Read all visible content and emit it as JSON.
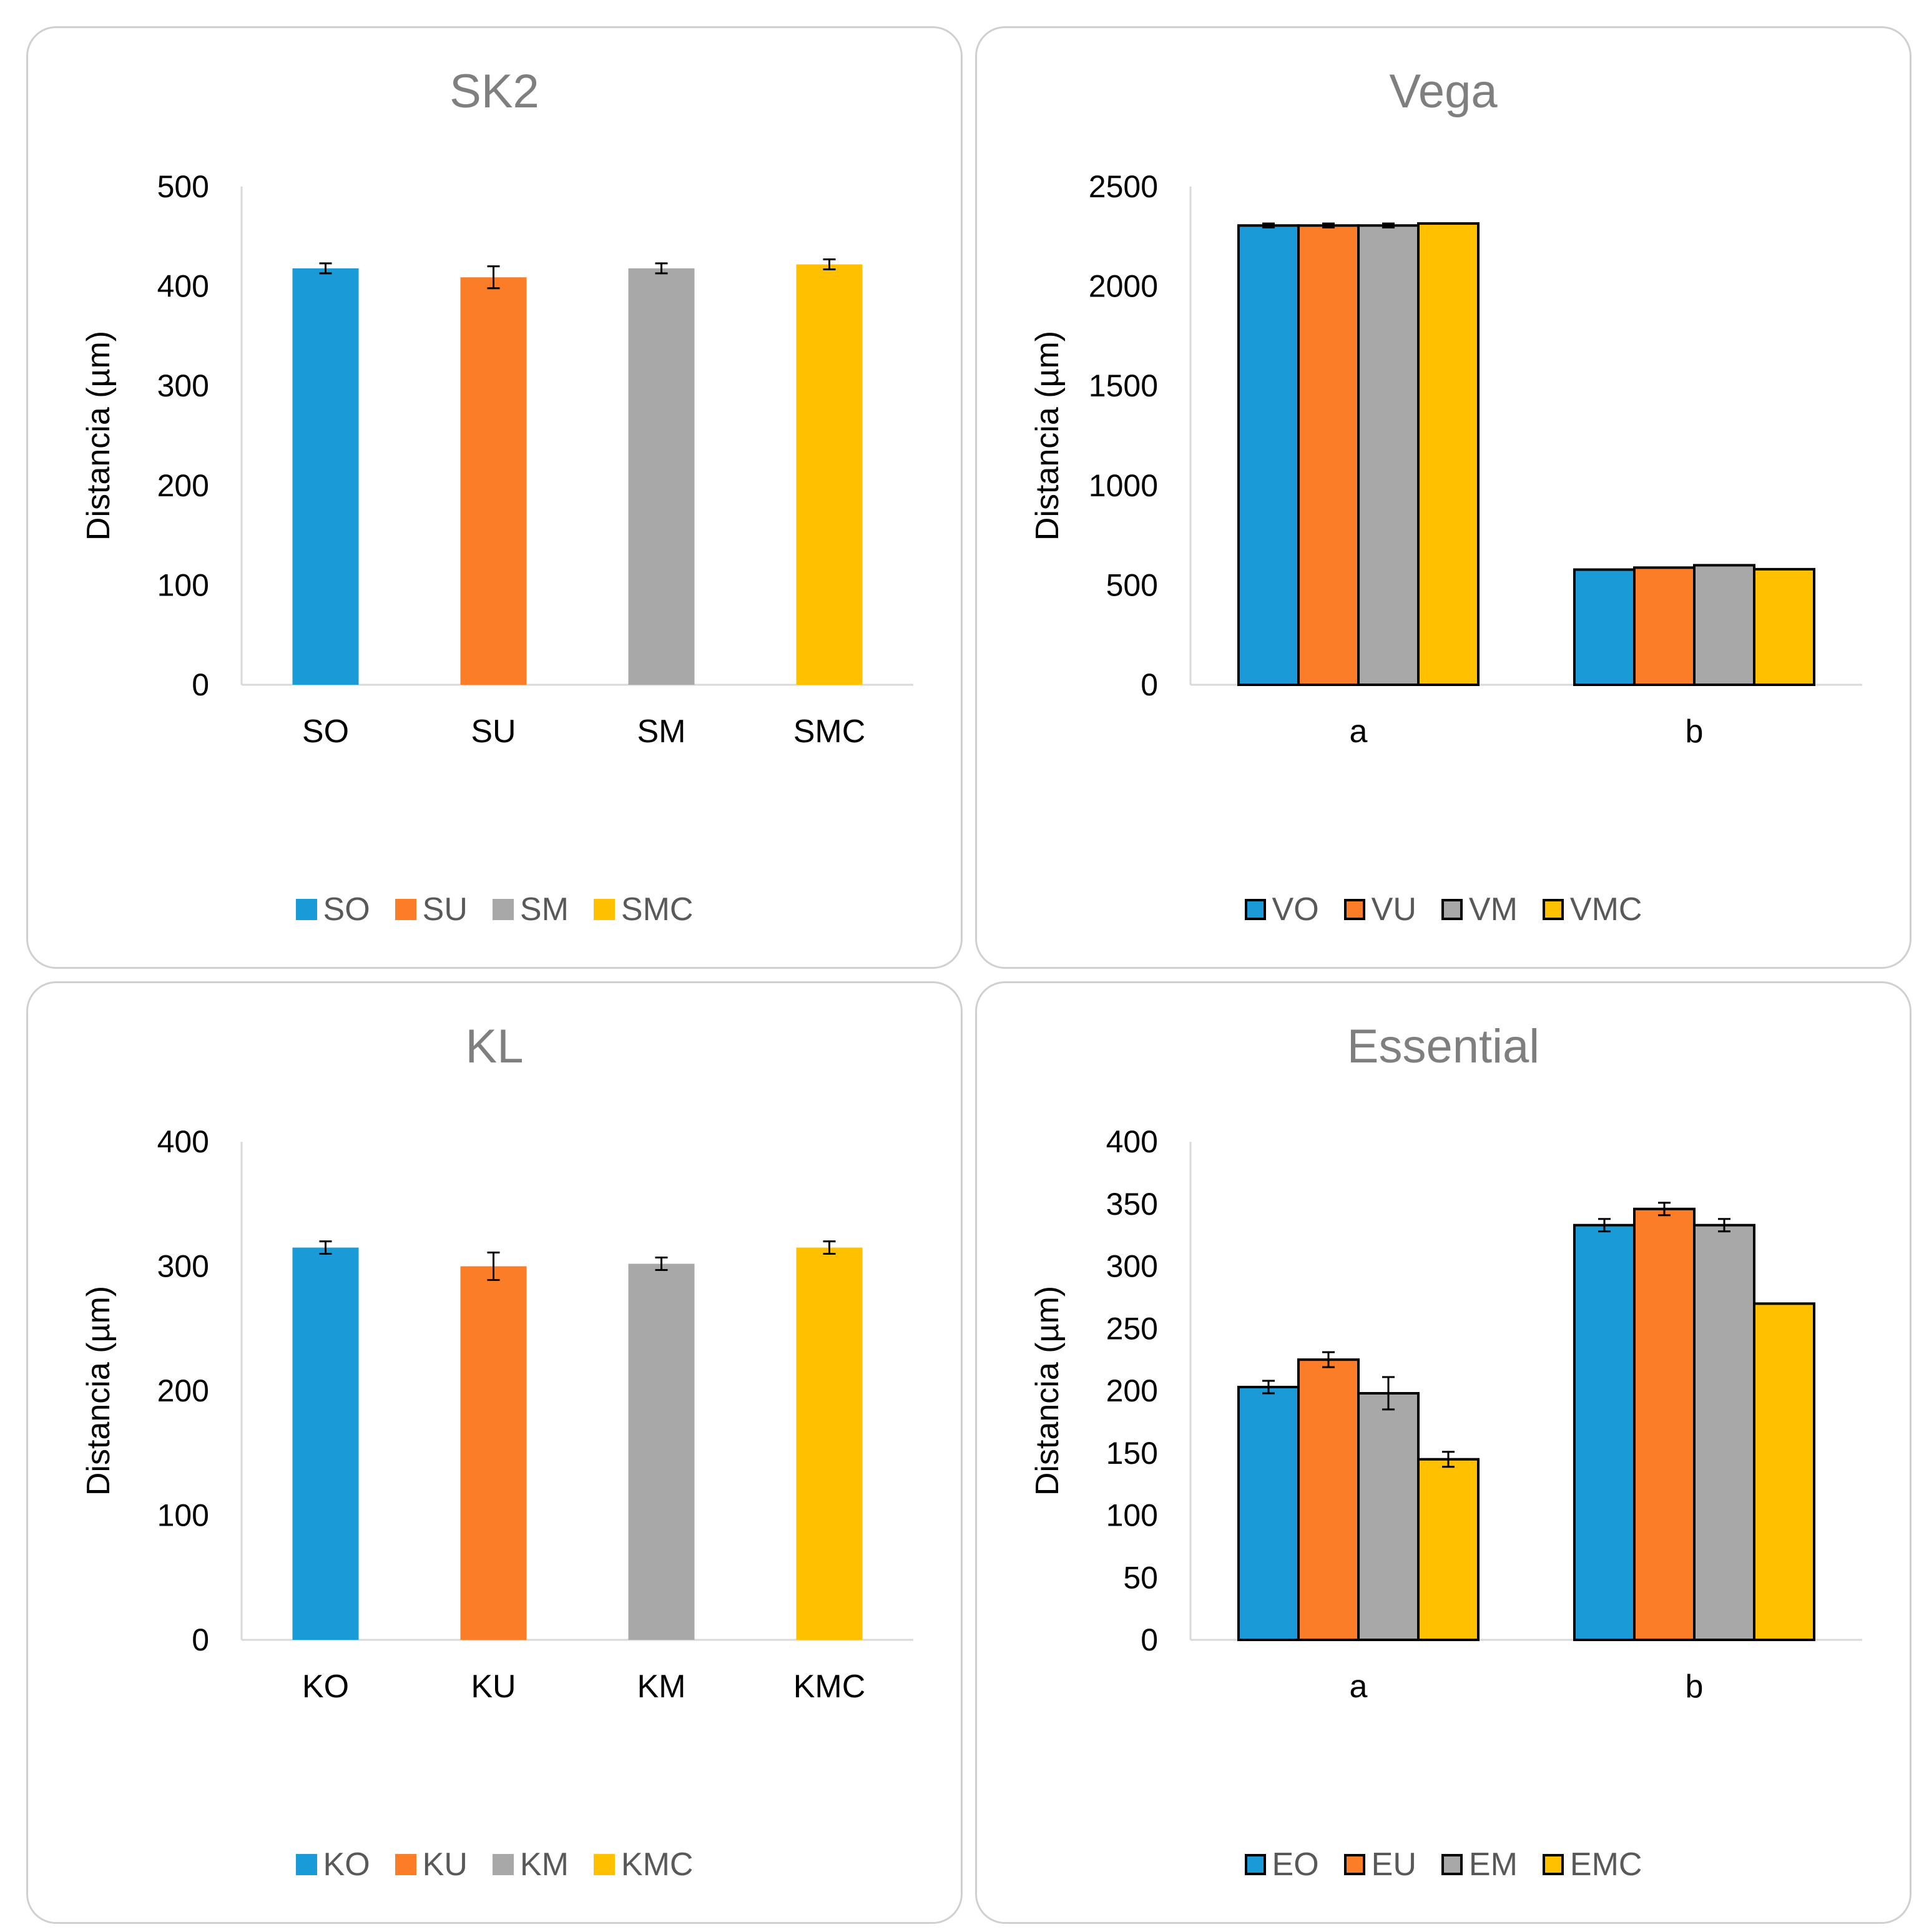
{
  "colors": {
    "blue": "#1a9ad7",
    "orange": "#fb7d28",
    "gray": "#a8a8a8",
    "yellow": "#ffc000"
  },
  "chart_data": [
    {
      "id": "sk2",
      "type": "bar",
      "title": "SK2",
      "ylabel": "Distancia (µm)",
      "xlabel": "",
      "ylim": [
        0,
        500
      ],
      "yticks": [
        0,
        100,
        200,
        300,
        400,
        500
      ],
      "grid": false,
      "outlined": false,
      "legend_position": "bottom",
      "categories": [
        "SO",
        "SU",
        "SM",
        "SMC"
      ],
      "values": [
        418,
        409,
        418,
        422
      ],
      "errors": [
        5,
        11,
        5,
        5
      ],
      "series_colors": [
        "blue",
        "orange",
        "gray",
        "yellow"
      ],
      "legend": [
        "SO",
        "SU",
        "SM",
        "SMC"
      ]
    },
    {
      "id": "vega",
      "type": "bar",
      "title": "Vega",
      "ylabel": "Distancia (µm)",
      "xlabel": "",
      "ylim": [
        0,
        2500
      ],
      "yticks": [
        0,
        500,
        1000,
        1500,
        2000,
        2500
      ],
      "grid": false,
      "outlined": true,
      "legend_position": "bottom",
      "categories": [
        "a",
        "b"
      ],
      "series": [
        {
          "name": "VO",
          "color": "blue",
          "values": [
            2305,
            578
          ],
          "errors": [
            10,
            0
          ]
        },
        {
          "name": "VU",
          "color": "orange",
          "values": [
            2305,
            588
          ],
          "errors": [
            10,
            0
          ]
        },
        {
          "name": "VM",
          "color": "gray",
          "values": [
            2305,
            600
          ],
          "errors": [
            10,
            0
          ]
        },
        {
          "name": "VMC",
          "color": "yellow",
          "values": [
            2315,
            580
          ],
          "errors": [
            0,
            0
          ]
        }
      ]
    },
    {
      "id": "kl",
      "type": "bar",
      "title": "KL",
      "ylabel": "Distancia (µm)",
      "xlabel": "",
      "ylim": [
        0,
        400
      ],
      "yticks": [
        0,
        100,
        200,
        300,
        400
      ],
      "grid": false,
      "outlined": false,
      "legend_position": "bottom",
      "categories": [
        "KO",
        "KU",
        "KM",
        "KMC"
      ],
      "values": [
        315,
        300,
        302,
        315
      ],
      "errors": [
        5,
        11,
        5,
        5
      ],
      "series_colors": [
        "blue",
        "orange",
        "gray",
        "yellow"
      ],
      "legend": [
        "KO",
        "KU",
        "KM",
        "KMC"
      ]
    },
    {
      "id": "essential",
      "type": "bar",
      "title": "Essential",
      "ylabel": "Distancia (µm)",
      "xlabel": "",
      "ylim": [
        0,
        400
      ],
      "yticks": [
        0,
        50,
        100,
        150,
        200,
        250,
        300,
        350,
        400
      ],
      "grid": false,
      "outlined": true,
      "legend_position": "bottom",
      "categories": [
        "a",
        "b"
      ],
      "series": [
        {
          "name": "EO",
          "color": "blue",
          "values": [
            203,
            333
          ],
          "errors": [
            5,
            5
          ]
        },
        {
          "name": "EU",
          "color": "orange",
          "values": [
            225,
            346
          ],
          "errors": [
            6,
            5
          ]
        },
        {
          "name": "EM",
          "color": "gray",
          "values": [
            198,
            333
          ],
          "errors": [
            13,
            5
          ]
        },
        {
          "name": "EMC",
          "color": "yellow",
          "values": [
            145,
            270
          ],
          "errors": [
            6,
            0
          ]
        }
      ]
    }
  ]
}
